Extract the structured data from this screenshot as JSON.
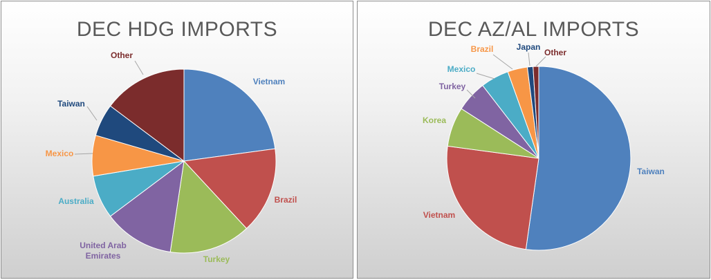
{
  "chart_data": [
    {
      "type": "pie",
      "title": "DEC HDG IMPORTS",
      "slices": [
        {
          "label": "Vietnam",
          "value": 24,
          "color": "#4f81bd"
        },
        {
          "label": "Brazil",
          "value": 16,
          "color": "#c0504d"
        },
        {
          "label": "Turkey",
          "value": 15,
          "color": "#9bbb59"
        },
        {
          "label": "United Arab Emirates",
          "value": 13,
          "color": "#8064a2"
        },
        {
          "label": "Australia",
          "value": 8,
          "color": "#4bacc6"
        },
        {
          "label": "Mexico",
          "value": 7.5,
          "color": "#f79646"
        },
        {
          "label": "Taiwan",
          "value": 6,
          "color": "#1f497d"
        },
        {
          "label": "Other",
          "value": 15.5,
          "color": "#7b2c2c"
        }
      ]
    },
    {
      "type": "pie",
      "title": "DEC AZ/AL IMPORTS",
      "slices": [
        {
          "label": "Taiwan",
          "value": 52.5,
          "color": "#4f81bd"
        },
        {
          "label": "Vietnam",
          "value": 25,
          "color": "#c0504d"
        },
        {
          "label": "Korea",
          "value": 7,
          "color": "#9bbb59"
        },
        {
          "label": "Turkey",
          "value": 5.5,
          "color": "#8064a2"
        },
        {
          "label": "Mexico",
          "value": 5,
          "color": "#4bacc6"
        },
        {
          "label": "Brazil",
          "value": 3.5,
          "color": "#f79646"
        },
        {
          "label": "Japan",
          "value": 1,
          "color": "#1f497d"
        },
        {
          "label": "Other",
          "value": 1,
          "color": "#7b2c2c"
        }
      ]
    }
  ]
}
